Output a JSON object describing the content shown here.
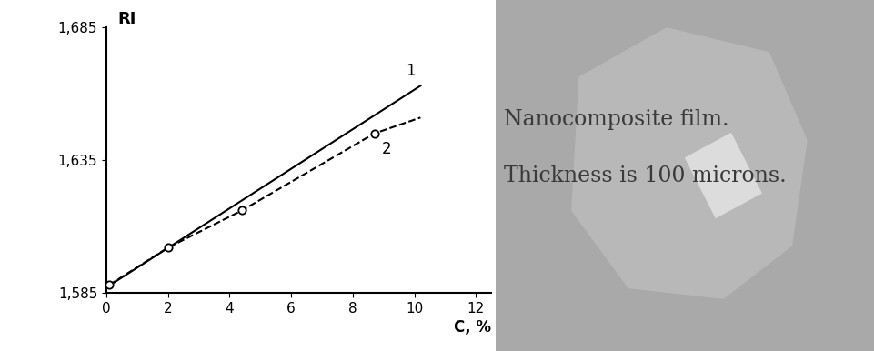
{
  "chart_data": {
    "type": "line",
    "y_label": "RI",
    "x_label": "C, %",
    "xlim": [
      0,
      12.5
    ],
    "xticks": [
      0,
      2,
      4,
      6,
      8,
      10,
      12
    ],
    "ylim": [
      1.585,
      1.685
    ],
    "yticks": [
      {
        "value": 1.585,
        "label": "1,585"
      },
      {
        "value": 1.635,
        "label": "1,635"
      },
      {
        "value": 1.685,
        "label": "1,685"
      }
    ],
    "grid": false,
    "series": [
      {
        "name": "1",
        "type": "line",
        "color": "#000000",
        "line_style": "solid",
        "x": [
          0,
          10.2
        ],
        "values": [
          1.587,
          1.663
        ]
      },
      {
        "name": "2",
        "type": "line",
        "color": "#000000",
        "line_style": "dashed",
        "x": [
          0.1,
          2,
          4.4,
          8.7,
          10.2
        ],
        "values": [
          1.588,
          1.602,
          1.616,
          1.645,
          1.651
        ]
      },
      {
        "type": "scatter",
        "color": "#000000",
        "marker": "o",
        "x": [
          0.1,
          2,
          4.4,
          8.7
        ],
        "values": [
          1.588,
          1.602,
          1.616,
          1.645
        ]
      }
    ]
  },
  "photo": {
    "caption_lines": [
      "Nanocomposite film.",
      "Thickness is 100 microns."
    ]
  }
}
